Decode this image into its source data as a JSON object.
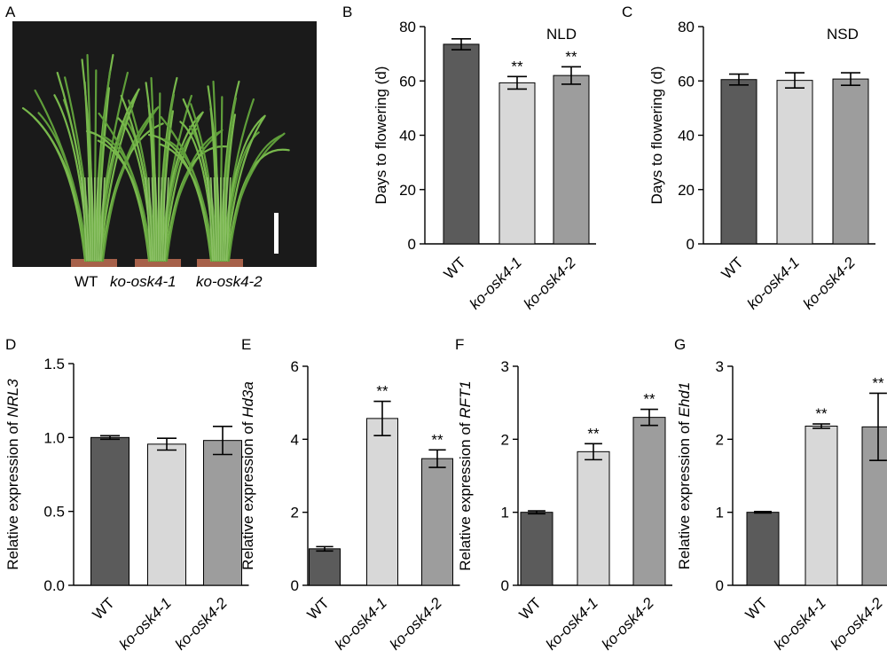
{
  "panel_letters": {
    "A": "A",
    "B": "B",
    "C": "C",
    "D": "D",
    "E": "E",
    "F": "F",
    "G": "G"
  },
  "photo": {
    "labels": [
      "WT",
      "ko-osk4-1",
      "ko-osk4-2"
    ],
    "colors": {
      "background": "#1a1a1a",
      "foliage": "#5f9e3a",
      "pot": "#a7614a",
      "scale_bar": "#ffffff"
    }
  },
  "colors": {
    "WT": "#5b5b5b",
    "ko-osk4-1": "#d8d8d8",
    "ko-osk4-2": "#9d9d9d",
    "axis": "#000000"
  },
  "chart_data": [
    {
      "panel": "B",
      "type": "bar",
      "categories": [
        "WT",
        "ko-osk4-1",
        "ko-osk4-2"
      ],
      "values": [
        73.5,
        59.3,
        62.0
      ],
      "errors": [
        2.0,
        2.3,
        3.2
      ],
      "significance": [
        "",
        "**",
        "**"
      ],
      "condition": "NLD",
      "ylabel_parts": [
        {
          "text": "Days to flowering (d)",
          "italic": false
        }
      ],
      "ylim": [
        0,
        80
      ],
      "yticks": [
        0,
        20,
        40,
        60,
        80
      ],
      "tick_labels": [
        "0",
        "20",
        "40",
        "60",
        "80"
      ]
    },
    {
      "panel": "C",
      "type": "bar",
      "categories": [
        "WT",
        "ko-osk4-1",
        "ko-osk4-2"
      ],
      "values": [
        60.5,
        60.2,
        60.7
      ],
      "errors": [
        2.0,
        2.8,
        2.3
      ],
      "significance": [
        "",
        "",
        ""
      ],
      "condition": "NSD",
      "ylabel_parts": [
        {
          "text": "Days to flowering (d)",
          "italic": false
        }
      ],
      "ylim": [
        0,
        80
      ],
      "yticks": [
        0,
        20,
        40,
        60,
        80
      ],
      "tick_labels": [
        "0",
        "20",
        "40",
        "60",
        "80"
      ]
    },
    {
      "panel": "D",
      "type": "bar",
      "categories": [
        "WT",
        "ko-osk4-1",
        "ko-osk4-2"
      ],
      "values": [
        1.0,
        0.955,
        0.98
      ],
      "errors": [
        0.012,
        0.04,
        0.095
      ],
      "significance": [
        "",
        "",
        ""
      ],
      "condition": "",
      "ylabel_parts": [
        {
          "text": "Relative expression of ",
          "italic": false
        },
        {
          "text": "NRL3",
          "italic": true
        }
      ],
      "ylim": [
        0,
        1.5
      ],
      "yticks": [
        0,
        0.5,
        1.0,
        1.5
      ],
      "tick_labels": [
        "0.0",
        "0.5",
        "1.0",
        "1.5"
      ]
    },
    {
      "panel": "E",
      "type": "bar",
      "categories": [
        "WT",
        "ko-osk4-1",
        "ko-osk4-2"
      ],
      "values": [
        1.0,
        4.57,
        3.47
      ],
      "errors": [
        0.06,
        0.47,
        0.24
      ],
      "significance": [
        "",
        "**",
        "**"
      ],
      "condition": "",
      "ylabel_parts": [
        {
          "text": "Relative expression of ",
          "italic": false
        },
        {
          "text": "Hd3a",
          "italic": true
        }
      ],
      "ylim": [
        0,
        6
      ],
      "yticks": [
        0,
        2,
        4,
        6
      ],
      "tick_labels": [
        "0",
        "2",
        "4",
        "6"
      ]
    },
    {
      "panel": "F",
      "type": "bar",
      "categories": [
        "WT",
        "ko-osk4-1",
        "ko-osk4-2"
      ],
      "values": [
        1.0,
        1.83,
        2.3
      ],
      "errors": [
        0.02,
        0.11,
        0.11
      ],
      "significance": [
        "",
        "**",
        "**"
      ],
      "condition": "",
      "ylabel_parts": [
        {
          "text": "Relative expression of ",
          "italic": false
        },
        {
          "text": "RFT1",
          "italic": true
        }
      ],
      "ylim": [
        0,
        3
      ],
      "yticks": [
        0,
        1,
        2,
        3
      ],
      "tick_labels": [
        "0",
        "1",
        "2",
        "3"
      ]
    },
    {
      "panel": "G",
      "type": "bar",
      "categories": [
        "WT",
        "ko-osk4-1",
        "ko-osk4-2"
      ],
      "values": [
        1.0,
        2.18,
        2.17
      ],
      "errors": [
        0.01,
        0.03,
        0.46
      ],
      "significance": [
        "",
        "**",
        "**"
      ],
      "condition": "",
      "ylabel_parts": [
        {
          "text": "Relative expression of ",
          "italic": false
        },
        {
          "text": "Ehd1",
          "italic": true
        }
      ],
      "ylim": [
        0,
        3
      ],
      "yticks": [
        0,
        1,
        2,
        3
      ],
      "tick_labels": [
        "0",
        "1",
        "2",
        "3"
      ]
    }
  ]
}
